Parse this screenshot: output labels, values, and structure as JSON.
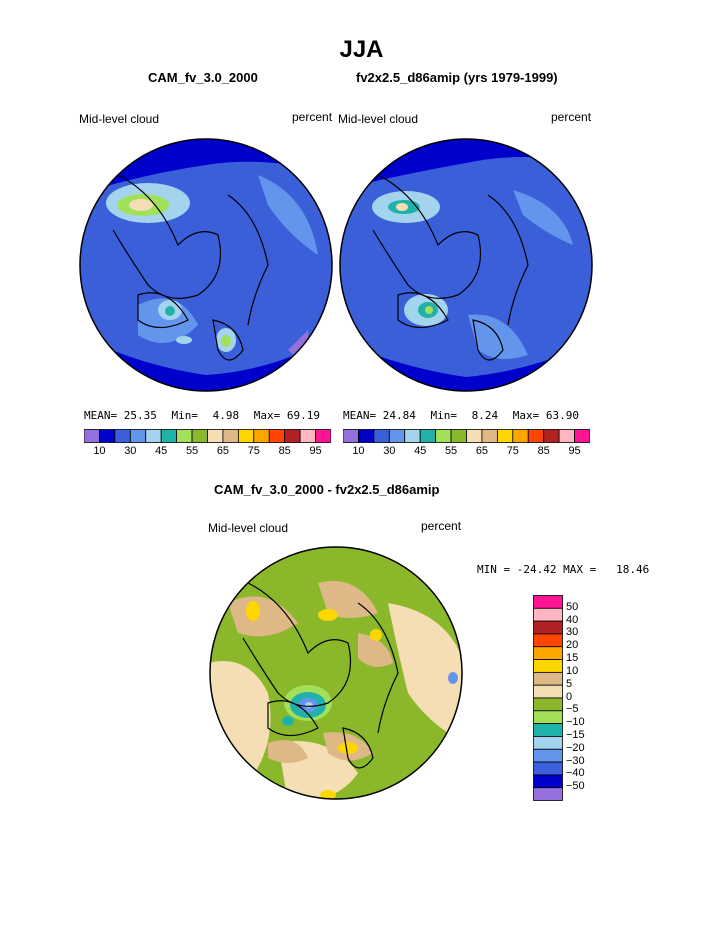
{
  "title": "JJA",
  "panels": [
    {
      "case_name": "CAM_fv_3.0_2000",
      "variable": "Mid-level cloud",
      "units": "percent",
      "stats": {
        "mean_label": "MEAN=",
        "mean": "25.35",
        "min_label": "Min=",
        "min": "4.98",
        "max_label": "Max=",
        "max": "69.19"
      }
    },
    {
      "case_name": "fv2x2.5_d86amip (yrs 1979-1999)",
      "variable": "Mid-level cloud",
      "units": "percent",
      "stats": {
        "mean_label": "MEAN=",
        "mean": "24.84",
        "min_label": "Min=",
        "min": "8.24",
        "max_label": "Max=",
        "max": "63.90"
      }
    }
  ],
  "shared_colorbar": {
    "colors": [
      "#9370db",
      "#0000cd",
      "#3a5fd9",
      "#6495ed",
      "#a4d3ee",
      "#20b2aa",
      "#a2e05a",
      "#8bb82b",
      "#f5deb3",
      "#deb887",
      "#ffd700",
      "#ffa500",
      "#ff4500",
      "#b22222",
      "#ffb6c1",
      "#ff1493"
    ],
    "tick_labels": [
      "10",
      "30",
      "45",
      "55",
      "65",
      "75",
      "85",
      "95"
    ]
  },
  "difference": {
    "title": "CAM_fv_3.0_2000 - fv2x2.5_d86amip",
    "variable": "Mid-level cloud",
    "units": "percent",
    "minmax_text": "MIN = -24.42 MAX =   18.46",
    "colorbar": {
      "colors": [
        "#ff1493",
        "#ffb6c1",
        "#b22222",
        "#ff4500",
        "#ffa500",
        "#ffd700",
        "#deb887",
        "#f5deb3",
        "#8bb82b",
        "#a2e05a",
        "#20b2aa",
        "#a4d3ee",
        "#6495ed",
        "#3a5fd9",
        "#0000cd",
        "#9370db"
      ],
      "tick_labels": [
        "50",
        "40",
        "30",
        "20",
        "15",
        "10",
        "5",
        "0",
        "−5",
        "−10",
        "−15",
        "−20",
        "−30",
        "−40",
        "−50"
      ]
    }
  }
}
